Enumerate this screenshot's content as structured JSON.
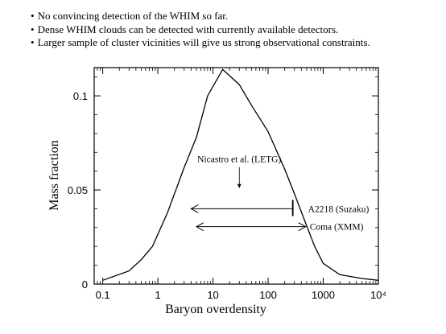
{
  "bullets": [
    "No convincing detection of the WHIM so far.",
    "Dense WHIM clouds can be detected with currently available detectors.",
    "Larger sample of cluster vicinities will give us strong observational constraints."
  ],
  "chart_data": {
    "type": "line",
    "xscale": "log",
    "xlim": [
      0.07,
      10000
    ],
    "ylim": [
      0,
      0.115
    ],
    "xlabel": "Baryon overdensity",
    "ylabel": "Mass fraction",
    "x_ticks": [
      {
        "value": 0.1,
        "label": "0.1"
      },
      {
        "value": 1,
        "label": "1"
      },
      {
        "value": 10,
        "label": "10"
      },
      {
        "value": 100,
        "label": "100"
      },
      {
        "value": 1000,
        "label": "1000"
      },
      {
        "value": 10000,
        "label": "10⁴"
      }
    ],
    "y_ticks": [
      {
        "value": 0,
        "label": "0"
      },
      {
        "value": 0.05,
        "label": "0.05"
      },
      {
        "value": 0.1,
        "label": "0.1"
      }
    ],
    "series": [
      {
        "x": [
          0.1,
          0.3,
          0.5,
          0.8,
          1.5,
          3,
          5,
          8,
          15,
          30,
          50,
          100,
          200,
          300,
          500,
          700,
          1000,
          2000,
          5000,
          10000
        ],
        "y": [
          0.002,
          0.007,
          0.013,
          0.02,
          0.038,
          0.062,
          0.078,
          0.1,
          0.114,
          0.106,
          0.095,
          0.081,
          0.061,
          0.048,
          0.031,
          0.02,
          0.011,
          0.005,
          0.003,
          0.002
        ]
      }
    ],
    "annotations": [
      {
        "text": "Nicastro et al. (LETG)",
        "x": 30,
        "y": 0.063,
        "arrow_to_y": 0.051
      },
      {
        "text": "A2218 (Suzaku)",
        "x_from": 4,
        "x_to": 280,
        "y": 0.04,
        "end_bar_at": 280
      },
      {
        "text": "Coma (XMM)",
        "x_from": 5,
        "x_to": 480,
        "y": 0.0305
      }
    ]
  }
}
